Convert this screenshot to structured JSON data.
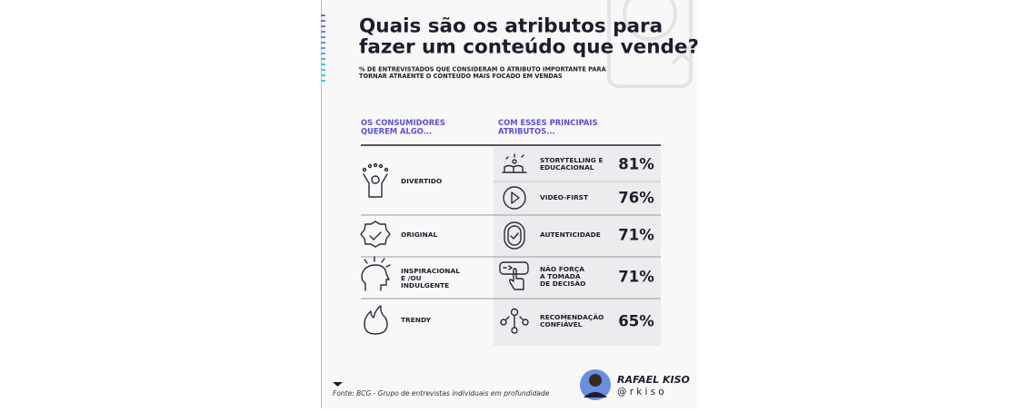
{
  "header": {
    "title_lines": [
      "Quais são os atributos para",
      "fazer um conteúdo que vende?"
    ],
    "subtitle_lines": [
      "% DE ENTREVISTADOS QUE CONSIDERAM O ATRIBUTO IMPORTANTE PARA",
      "TORNAR ATRAENTE O CONTEÚDO MAIS FOCADO EM VENDAS"
    ]
  },
  "table": {
    "headers": [
      [
        "OS CONSUMIDORES",
        "QUEREM ALGO..."
      ],
      [
        "COM ESSES PRINCIPAIS",
        "ATRIBUTOS..."
      ]
    ],
    "rows": [
      {
        "want": [
          "DIVERTIDO"
        ],
        "attributes": [
          {
            "label": [
              "STORYTELLING E",
              "EDUCACIONAL"
            ],
            "percent": "81%"
          },
          {
            "label": [
              "VIDEO-FIRST"
            ],
            "percent": "76%"
          }
        ]
      },
      {
        "want": [
          "ORIGINAL"
        ],
        "attributes": [
          {
            "label": [
              "AUTENTICIDADE"
            ],
            "percent": "71%"
          }
        ]
      },
      {
        "want": [
          "INSPIRACIONAL",
          "E /OU",
          "INDULGENTE"
        ],
        "attributes": [
          {
            "label": [
              "NÃO FORÇA",
              "A TOMADA",
              "DE DECISÃO"
            ],
            "percent": "71%"
          }
        ]
      },
      {
        "want": [
          "TRENDY"
        ],
        "attributes": [
          {
            "label": [
              "RECOMENDAÇÃO",
              "CONFIÁVEL"
            ],
            "percent": "65%"
          }
        ]
      }
    ]
  },
  "footer": {
    "source": "Fonte: BCG - Grupo de entrevistas individuais em profundidade",
    "author": "RAFAEL KISO",
    "handle": "@rkiso"
  }
}
